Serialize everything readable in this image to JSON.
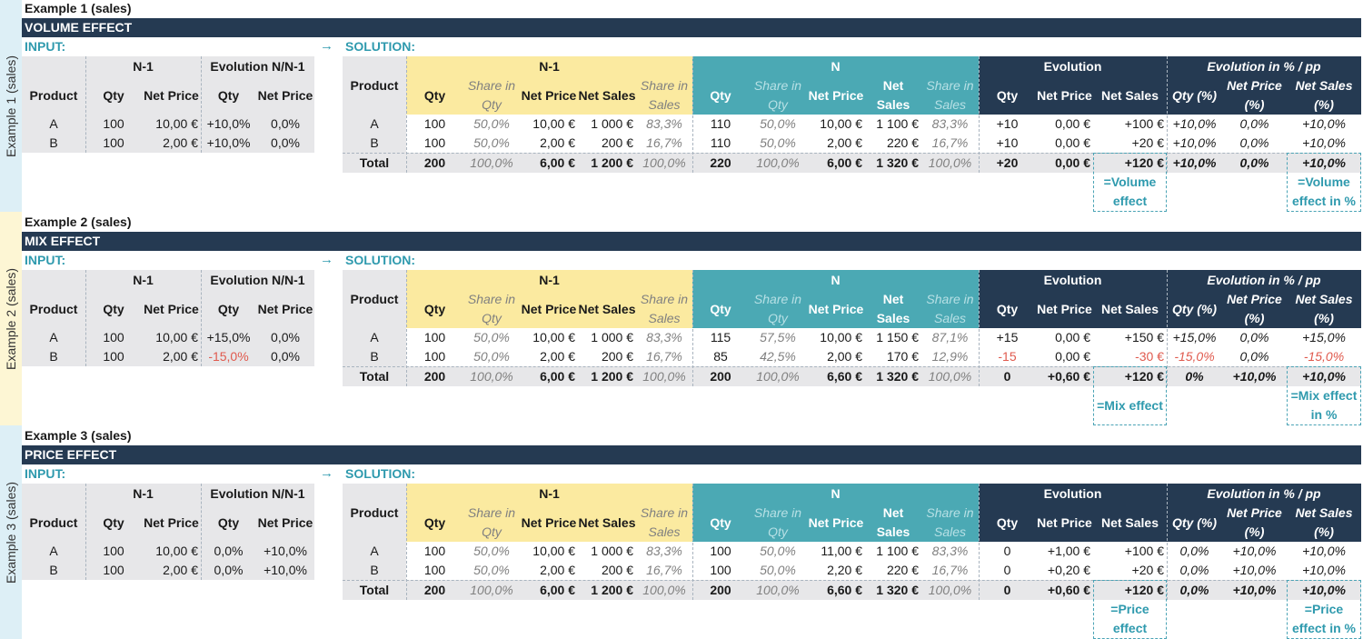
{
  "labels": {
    "input": "INPUT:",
    "solution": "SOLUTION:",
    "arrow": "→",
    "n1": "N-1",
    "n": "N",
    "evol_nn1": "Evolution N/N-1",
    "evolution": "Evolution",
    "evol_pct": "Evolution in % / pp",
    "product": "Product",
    "qty": "Qty",
    "net_price": "Net Price",
    "net_sales": "Net Sales",
    "share_qty": "Share in Qty",
    "share_sales": "Share in Sales",
    "qty_pct": "Qty (%)",
    "net_price_pct": "Net Price (%)",
    "net_sales_pct": "Net Sales (%)"
  },
  "colors": {
    "banner": "#253a52",
    "teal": "#4ba9b4",
    "yellow": "#fbeaa0",
    "gray": "#e7e7e9",
    "accent": "#2f9aae",
    "negative": "#e05a4e"
  },
  "examples": [
    {
      "sidebar": "Example 1 (sales)",
      "title": "Example 1 (sales)",
      "banner": "VOLUME EFFECT",
      "input_rows": [
        [
          "A",
          "100",
          "10,00 €",
          "+10,0%",
          "0,0%"
        ],
        [
          "B",
          "100",
          "2,00 €",
          "+10,0%",
          "0,0%"
        ]
      ],
      "solution_rows": [
        [
          "A",
          "100",
          "50,0%",
          "10,00 €",
          "1 000 €",
          "83,3%",
          "110",
          "50,0%",
          "10,00 €",
          "1 100 €",
          "83,3%",
          "+10",
          "0,00 €",
          "+100 €",
          "+10,0%",
          "0,0%",
          "+10,0%"
        ],
        [
          "B",
          "100",
          "50,0%",
          "2,00 €",
          "200 €",
          "16,7%",
          "110",
          "50,0%",
          "2,00 €",
          "220 €",
          "16,7%",
          "+10",
          "0,00 €",
          "+20 €",
          "+10,0%",
          "0,0%",
          "+10,0%"
        ],
        [
          "Total",
          "200",
          "100,0%",
          "6,00 €",
          "1 200 €",
          "100,0%",
          "220",
          "100,0%",
          "6,00 €",
          "1 320 €",
          "100,0%",
          "+20",
          "0,00 €",
          "+120 €",
          "+10,0%",
          "0,0%",
          "+10,0%"
        ]
      ],
      "note_ns": "=Volume effect",
      "note_pct": "=Volume effect in %"
    },
    {
      "sidebar": "Example 2 (sales)",
      "title": "Example 2 (sales)",
      "banner": "MIX EFFECT",
      "input_rows": [
        [
          "A",
          "100",
          "10,00 €",
          "+15,0%",
          "0,0%"
        ],
        [
          "B",
          "100",
          "2,00 €",
          "-15,0%",
          "0,0%"
        ]
      ],
      "solution_rows": [
        [
          "A",
          "100",
          "50,0%",
          "10,00 €",
          "1 000 €",
          "83,3%",
          "115",
          "57,5%",
          "10,00 €",
          "1 150 €",
          "87,1%",
          "+15",
          "0,00 €",
          "+150 €",
          "+15,0%",
          "0,0%",
          "+15,0%"
        ],
        [
          "B",
          "100",
          "50,0%",
          "2,00 €",
          "200 €",
          "16,7%",
          "85",
          "42,5%",
          "2,00 €",
          "170 €",
          "12,9%",
          "-15",
          "0,00 €",
          "-30 €",
          "-15,0%",
          "0,0%",
          "-15,0%"
        ],
        [
          "Total",
          "200",
          "100,0%",
          "6,00 €",
          "1 200 €",
          "100,0%",
          "200",
          "100,0%",
          "6,60 €",
          "1 320 €",
          "100,0%",
          "0",
          "+0,60 €",
          "+120 €",
          "0%",
          "+10,0%",
          "+10,0%"
        ]
      ],
      "note_ns": "=Mix effect",
      "note_pct": "=Mix effect in %"
    },
    {
      "sidebar": "Example 3 (sales)",
      "title": "Example 3 (sales)",
      "banner": "PRICE EFFECT",
      "input_rows": [
        [
          "A",
          "100",
          "10,00 €",
          "0,0%",
          "+10,0%"
        ],
        [
          "B",
          "100",
          "2,00 €",
          "0,0%",
          "+10,0%"
        ]
      ],
      "solution_rows": [
        [
          "A",
          "100",
          "50,0%",
          "10,00 €",
          "1 000 €",
          "83,3%",
          "100",
          "50,0%",
          "11,00 €",
          "1 100 €",
          "83,3%",
          "0",
          "+1,00 €",
          "+100 €",
          "0,0%",
          "+10,0%",
          "+10,0%"
        ],
        [
          "B",
          "100",
          "50,0%",
          "2,00 €",
          "200 €",
          "16,7%",
          "100",
          "50,0%",
          "2,20 €",
          "220 €",
          "16,7%",
          "0",
          "+0,20 €",
          "+20 €",
          "0,0%",
          "+10,0%",
          "+10,0%"
        ],
        [
          "Total",
          "200",
          "100,0%",
          "6,00 €",
          "1 200 €",
          "100,0%",
          "200",
          "100,0%",
          "6,60 €",
          "1 320 €",
          "100,0%",
          "0",
          "+0,60 €",
          "+120 €",
          "0,0%",
          "+10,0%",
          "+10,0%"
        ]
      ],
      "note_ns": "=Price effect",
      "note_pct": "=Price effect in %"
    }
  ]
}
